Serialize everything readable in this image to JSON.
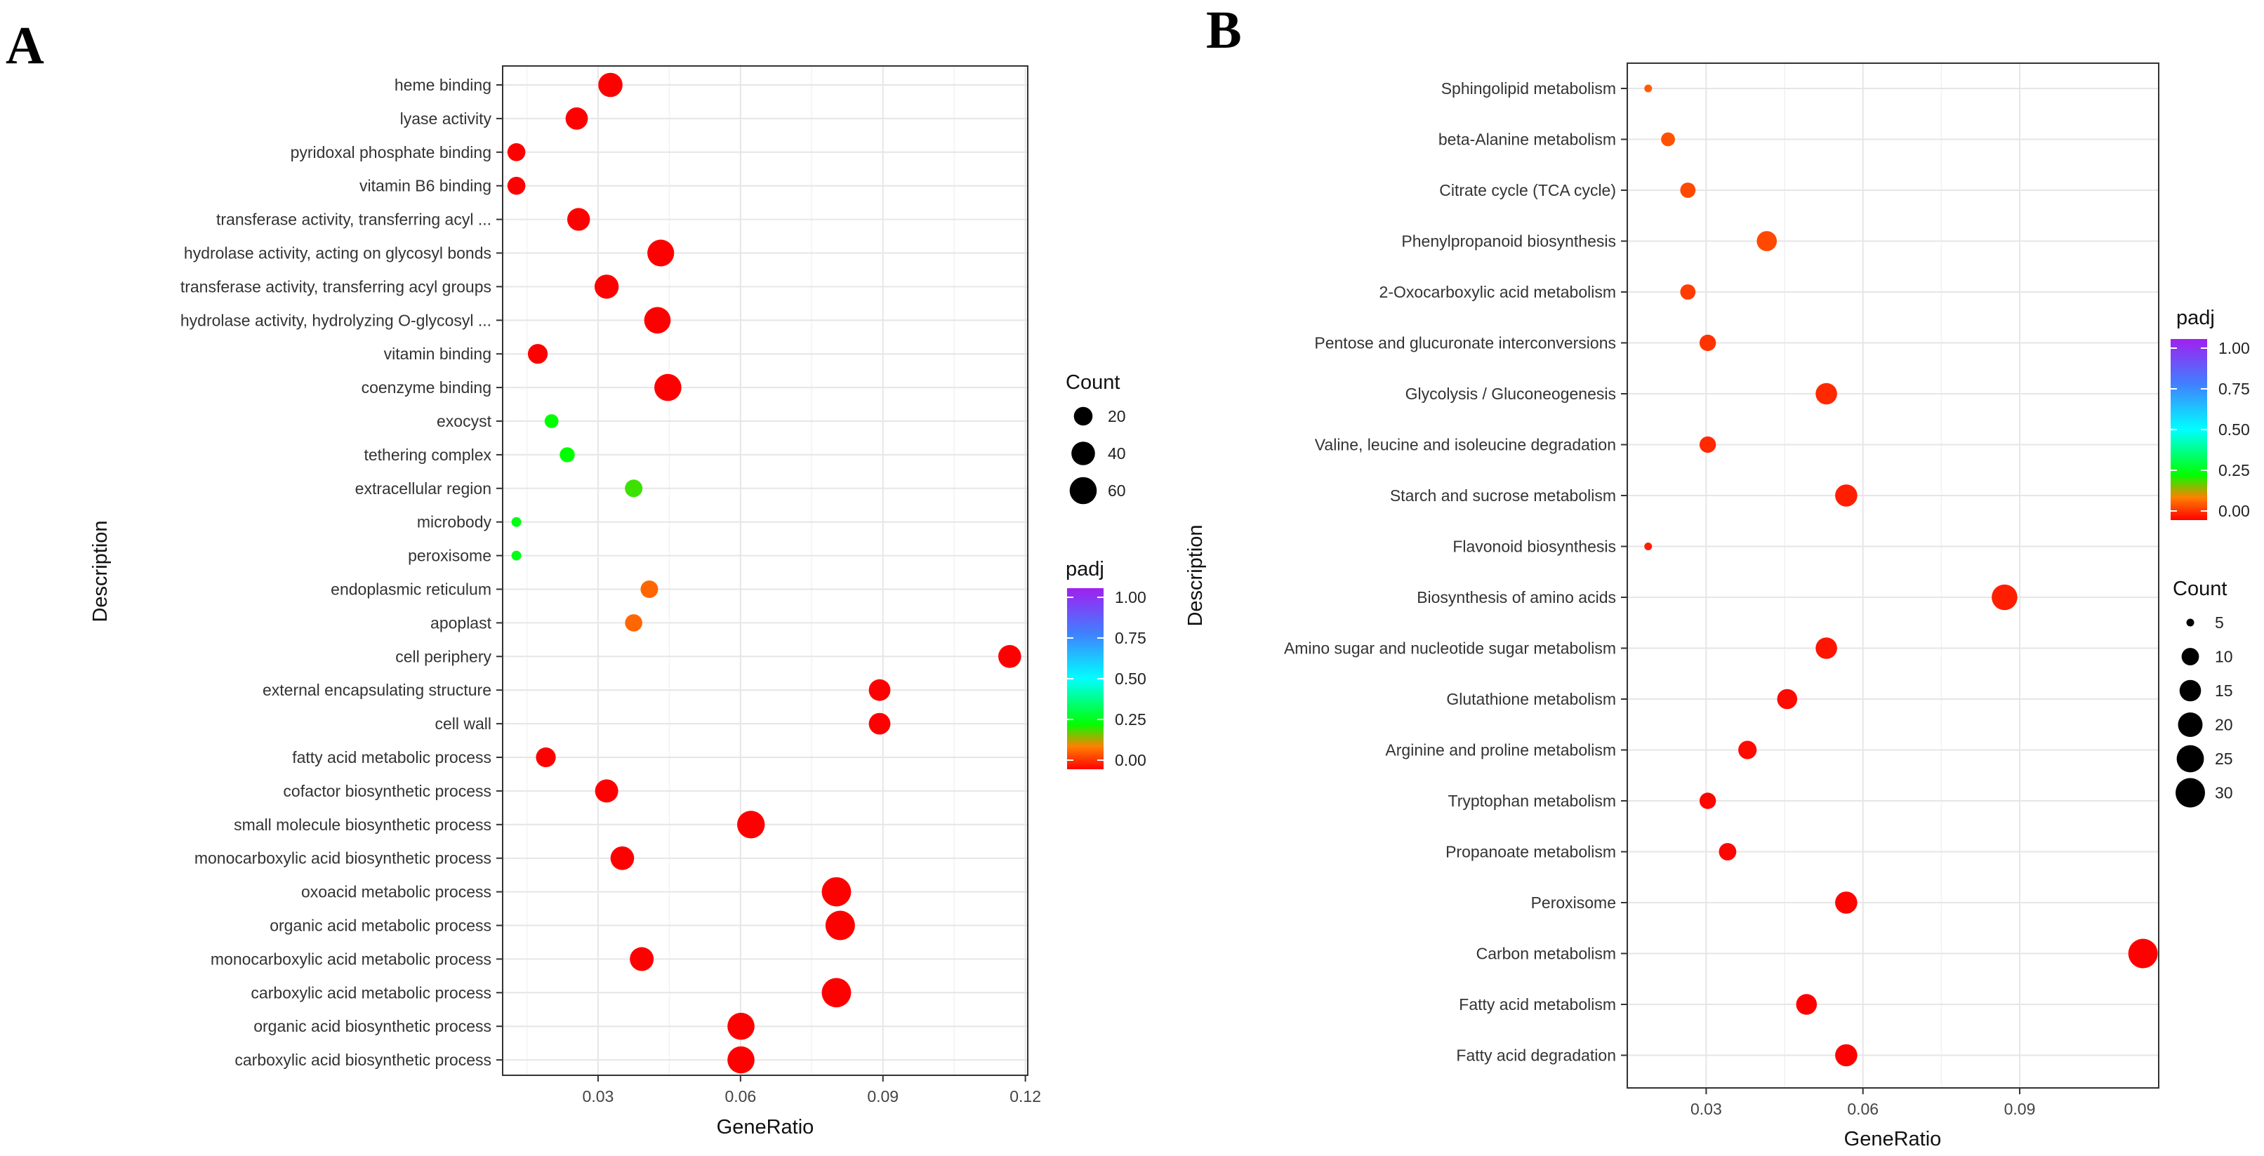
{
  "chart_data": [
    {
      "panel_label": "A",
      "type": "scatter",
      "xlabel": "GeneRatio",
      "ylabel": "Description",
      "xlim": [
        0.0099,
        0.1205
      ],
      "xticks": [
        0.03,
        0.06,
        0.09,
        0.12
      ],
      "xtick_labels": [
        "0.03",
        "0.06",
        "0.09",
        "0.12"
      ],
      "legend_order": [
        "count",
        "color"
      ],
      "size_legend": {
        "title": "Count",
        "values": [
          20,
          40,
          60
        ],
        "labels": [
          "20",
          "40",
          "60"
        ]
      },
      "color_legend": {
        "title": "padj",
        "min": 0,
        "max": 1,
        "ticks": [
          "1.00",
          "0.75",
          "0.50",
          "0.25",
          "0.00"
        ]
      },
      "points": [
        {
          "label": "heme binding",
          "x": 0.0326,
          "count": 44,
          "padj": 0.0
        },
        {
          "label": "lyase activity",
          "x": 0.0255,
          "count": 34,
          "padj": 0.0
        },
        {
          "label": "pyridoxal phosphate binding",
          "x": 0.0128,
          "count": 18,
          "padj": 0.0
        },
        {
          "label": "vitamin B6 binding",
          "x": 0.0128,
          "count": 18,
          "padj": 0.0
        },
        {
          "label": "transferase activity, transferring acyl ...",
          "x": 0.0259,
          "count": 36,
          "padj": 0.0
        },
        {
          "label": "hydrolase activity, acting on glycosyl bonds",
          "x": 0.0432,
          "count": 58,
          "padj": 0.0
        },
        {
          "label": "transferase activity, transferring acyl groups",
          "x": 0.0318,
          "count": 43,
          "padj": 0.0
        },
        {
          "label": "hydrolase activity, hydrolyzing O-glycosyl ...",
          "x": 0.0425,
          "count": 57,
          "padj": 0.0
        },
        {
          "label": "vitamin binding",
          "x": 0.0173,
          "count": 24,
          "padj": 0.0
        },
        {
          "label": "coenzyme binding",
          "x": 0.0447,
          "count": 60,
          "padj": 0.0
        },
        {
          "label": "exocyst",
          "x": 0.0202,
          "count": 9,
          "padj": 0.25
        },
        {
          "label": "tethering complex",
          "x": 0.0235,
          "count": 11,
          "padj": 0.25
        },
        {
          "label": "extracellular region",
          "x": 0.0375,
          "count": 17,
          "padj": 0.22
        },
        {
          "label": "microbody",
          "x": 0.0128,
          "count": 6,
          "padj": 0.27
        },
        {
          "label": "peroxisome",
          "x": 0.0128,
          "count": 6,
          "padj": 0.27
        },
        {
          "label": "endoplasmic reticulum",
          "x": 0.0408,
          "count": 17,
          "padj": 0.1
        },
        {
          "label": "apoplast",
          "x": 0.0375,
          "count": 16,
          "padj": 0.1
        },
        {
          "label": "cell periphery",
          "x": 0.1167,
          "count": 37,
          "padj": 0.0
        },
        {
          "label": "external encapsulating structure",
          "x": 0.0893,
          "count": 31,
          "padj": 0.0
        },
        {
          "label": "cell wall",
          "x": 0.0893,
          "count": 31,
          "padj": 0.0
        },
        {
          "label": "fatty acid metabolic process",
          "x": 0.019,
          "count": 24,
          "padj": 0.0
        },
        {
          "label": "cofactor biosynthetic process",
          "x": 0.0318,
          "count": 38,
          "padj": 0.0
        },
        {
          "label": "small molecule biosynthetic process",
          "x": 0.0622,
          "count": 64,
          "padj": 0.0
        },
        {
          "label": "monocarboxylic acid biosynthetic process",
          "x": 0.0351,
          "count": 40,
          "padj": 0.0
        },
        {
          "label": "oxoacid metabolic process",
          "x": 0.0802,
          "count": 75,
          "padj": 0.0
        },
        {
          "label": "organic acid metabolic process",
          "x": 0.081,
          "count": 76,
          "padj": 0.0
        },
        {
          "label": "monocarboxylic acid metabolic process",
          "x": 0.0392,
          "count": 42,
          "padj": 0.0
        },
        {
          "label": "carboxylic acid metabolic process",
          "x": 0.0802,
          "count": 75,
          "padj": 0.0
        },
        {
          "label": "organic acid biosynthetic process",
          "x": 0.0601,
          "count": 60,
          "padj": 0.0
        },
        {
          "label": "carboxylic acid biosynthetic process",
          "x": 0.0601,
          "count": 60,
          "padj": 0.0
        }
      ]
    },
    {
      "panel_label": "B",
      "type": "scatter",
      "xlabel": "GeneRatio",
      "ylabel": "Description",
      "xlim": [
        0.0149,
        0.1166
      ],
      "xticks": [
        0.03,
        0.06,
        0.09
      ],
      "xtick_labels": [
        "0.03",
        "0.06",
        "0.09"
      ],
      "legend_order": [
        "color",
        "count"
      ],
      "size_legend": {
        "title": "Count",
        "values": [
          5,
          10,
          15,
          20,
          25,
          30
        ],
        "labels": [
          "5",
          "10",
          "15",
          "20",
          "25",
          "30"
        ]
      },
      "color_legend": {
        "title": "padj",
        "min": 0,
        "max": 1,
        "ticks": [
          "1.00",
          "0.75",
          "0.50",
          "0.25",
          "0.00"
        ]
      },
      "points": [
        {
          "label": "Sphingolipid metabolism",
          "x": 0.0189,
          "count": 5,
          "padj": 0.09
        },
        {
          "label": "beta-Alanine metabolism",
          "x": 0.0227,
          "count": 7,
          "padj": 0.08
        },
        {
          "label": "Citrate cycle (TCA cycle)",
          "x": 0.0265,
          "count": 8,
          "padj": 0.07
        },
        {
          "label": "Phenylpropanoid biosynthesis",
          "x": 0.0416,
          "count": 13,
          "padj": 0.07
        },
        {
          "label": "2-Oxocarboxylic acid metabolism",
          "x": 0.0265,
          "count": 8,
          "padj": 0.06
        },
        {
          "label": "Pentose and glucuronate interconversions",
          "x": 0.0303,
          "count": 9,
          "padj": 0.05
        },
        {
          "label": "Glycolysis / Gluconeogenesis",
          "x": 0.053,
          "count": 15,
          "padj": 0.04
        },
        {
          "label": "Valine, leucine and isoleucine degradation",
          "x": 0.0303,
          "count": 9,
          "padj": 0.04
        },
        {
          "label": "Starch and sucrose metabolism",
          "x": 0.0568,
          "count": 16,
          "padj": 0.03
        },
        {
          "label": "Flavonoid biosynthesis",
          "x": 0.0189,
          "count": 5,
          "padj": 0.03
        },
        {
          "label": "Biosynthesis of amino acids",
          "x": 0.0871,
          "count": 22,
          "padj": 0.03
        },
        {
          "label": "Amino sugar and nucleotide sugar metabolism",
          "x": 0.053,
          "count": 15,
          "padj": 0.02
        },
        {
          "label": "Glutathione metabolism",
          "x": 0.0455,
          "count": 13,
          "padj": 0.01
        },
        {
          "label": "Arginine and proline metabolism",
          "x": 0.0379,
          "count": 11,
          "padj": 0.01
        },
        {
          "label": "Tryptophan metabolism",
          "x": 0.0303,
          "count": 9,
          "padj": 0.005
        },
        {
          "label": "Propanoate metabolism",
          "x": 0.0341,
          "count": 10,
          "padj": 0.005
        },
        {
          "label": "Peroxisome",
          "x": 0.0568,
          "count": 16,
          "padj": 0.003
        },
        {
          "label": "Carbon metabolism",
          "x": 0.1136,
          "count": 30,
          "padj": 0.0
        },
        {
          "label": "Fatty acid metabolism",
          "x": 0.0492,
          "count": 14,
          "padj": 0.0
        },
        {
          "label": "Fatty acid degradation",
          "x": 0.0568,
          "count": 16,
          "padj": 0.0
        }
      ]
    }
  ]
}
